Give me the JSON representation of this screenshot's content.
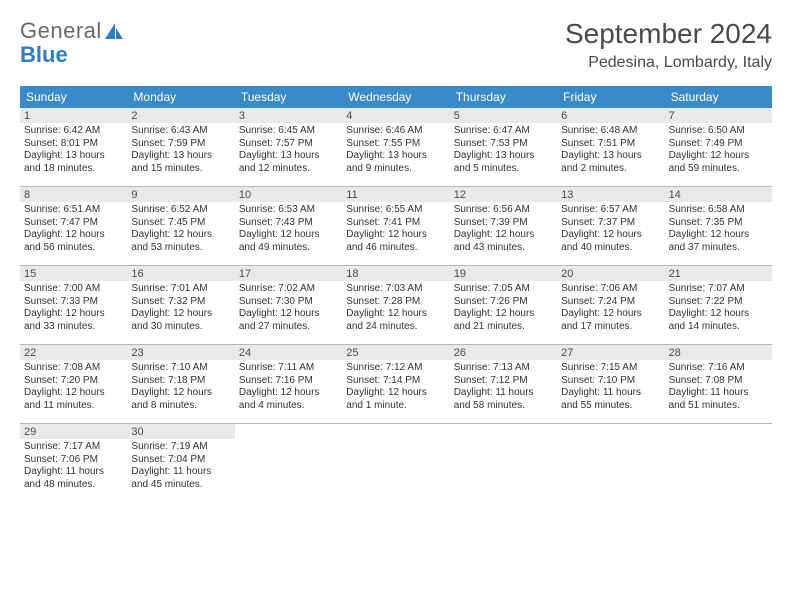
{
  "brand": {
    "top": "General",
    "bot": "Blue"
  },
  "title": "September 2024",
  "location": "Pedesina, Lombardy, Italy",
  "colors": {
    "header_bg": "#3a8ac7",
    "header_fg": "#ffffff",
    "daynum_bg": "#e9e9e9",
    "rule": "#b8b8b8",
    "text": "#333333"
  },
  "dow": [
    "Sunday",
    "Monday",
    "Tuesday",
    "Wednesday",
    "Thursday",
    "Friday",
    "Saturday"
  ],
  "days": [
    {
      "n": "1",
      "sr": "6:42 AM",
      "ss": "8:01 PM",
      "dl": "13 hours and 18 minutes."
    },
    {
      "n": "2",
      "sr": "6:43 AM",
      "ss": "7:59 PM",
      "dl": "13 hours and 15 minutes."
    },
    {
      "n": "3",
      "sr": "6:45 AM",
      "ss": "7:57 PM",
      "dl": "13 hours and 12 minutes."
    },
    {
      "n": "4",
      "sr": "6:46 AM",
      "ss": "7:55 PM",
      "dl": "13 hours and 9 minutes."
    },
    {
      "n": "5",
      "sr": "6:47 AM",
      "ss": "7:53 PM",
      "dl": "13 hours and 5 minutes."
    },
    {
      "n": "6",
      "sr": "6:48 AM",
      "ss": "7:51 PM",
      "dl": "13 hours and 2 minutes."
    },
    {
      "n": "7",
      "sr": "6:50 AM",
      "ss": "7:49 PM",
      "dl": "12 hours and 59 minutes."
    },
    {
      "n": "8",
      "sr": "6:51 AM",
      "ss": "7:47 PM",
      "dl": "12 hours and 56 minutes."
    },
    {
      "n": "9",
      "sr": "6:52 AM",
      "ss": "7:45 PM",
      "dl": "12 hours and 53 minutes."
    },
    {
      "n": "10",
      "sr": "6:53 AM",
      "ss": "7:43 PM",
      "dl": "12 hours and 49 minutes."
    },
    {
      "n": "11",
      "sr": "6:55 AM",
      "ss": "7:41 PM",
      "dl": "12 hours and 46 minutes."
    },
    {
      "n": "12",
      "sr": "6:56 AM",
      "ss": "7:39 PM",
      "dl": "12 hours and 43 minutes."
    },
    {
      "n": "13",
      "sr": "6:57 AM",
      "ss": "7:37 PM",
      "dl": "12 hours and 40 minutes."
    },
    {
      "n": "14",
      "sr": "6:58 AM",
      "ss": "7:35 PM",
      "dl": "12 hours and 37 minutes."
    },
    {
      "n": "15",
      "sr": "7:00 AM",
      "ss": "7:33 PM",
      "dl": "12 hours and 33 minutes."
    },
    {
      "n": "16",
      "sr": "7:01 AM",
      "ss": "7:32 PM",
      "dl": "12 hours and 30 minutes."
    },
    {
      "n": "17",
      "sr": "7:02 AM",
      "ss": "7:30 PM",
      "dl": "12 hours and 27 minutes."
    },
    {
      "n": "18",
      "sr": "7:03 AM",
      "ss": "7:28 PM",
      "dl": "12 hours and 24 minutes."
    },
    {
      "n": "19",
      "sr": "7:05 AM",
      "ss": "7:26 PM",
      "dl": "12 hours and 21 minutes."
    },
    {
      "n": "20",
      "sr": "7:06 AM",
      "ss": "7:24 PM",
      "dl": "12 hours and 17 minutes."
    },
    {
      "n": "21",
      "sr": "7:07 AM",
      "ss": "7:22 PM",
      "dl": "12 hours and 14 minutes."
    },
    {
      "n": "22",
      "sr": "7:08 AM",
      "ss": "7:20 PM",
      "dl": "12 hours and 11 minutes."
    },
    {
      "n": "23",
      "sr": "7:10 AM",
      "ss": "7:18 PM",
      "dl": "12 hours and 8 minutes."
    },
    {
      "n": "24",
      "sr": "7:11 AM",
      "ss": "7:16 PM",
      "dl": "12 hours and 4 minutes."
    },
    {
      "n": "25",
      "sr": "7:12 AM",
      "ss": "7:14 PM",
      "dl": "12 hours and 1 minute."
    },
    {
      "n": "26",
      "sr": "7:13 AM",
      "ss": "7:12 PM",
      "dl": "11 hours and 58 minutes."
    },
    {
      "n": "27",
      "sr": "7:15 AM",
      "ss": "7:10 PM",
      "dl": "11 hours and 55 minutes."
    },
    {
      "n": "28",
      "sr": "7:16 AM",
      "ss": "7:08 PM",
      "dl": "11 hours and 51 minutes."
    },
    {
      "n": "29",
      "sr": "7:17 AM",
      "ss": "7:06 PM",
      "dl": "11 hours and 48 minutes."
    },
    {
      "n": "30",
      "sr": "7:19 AM",
      "ss": "7:04 PM",
      "dl": "11 hours and 45 minutes."
    }
  ],
  "labels": {
    "sunrise": "Sunrise:",
    "sunset": "Sunset:",
    "daylight": "Daylight:"
  },
  "layout": {
    "weeks": 5,
    "start_dow": 0
  }
}
